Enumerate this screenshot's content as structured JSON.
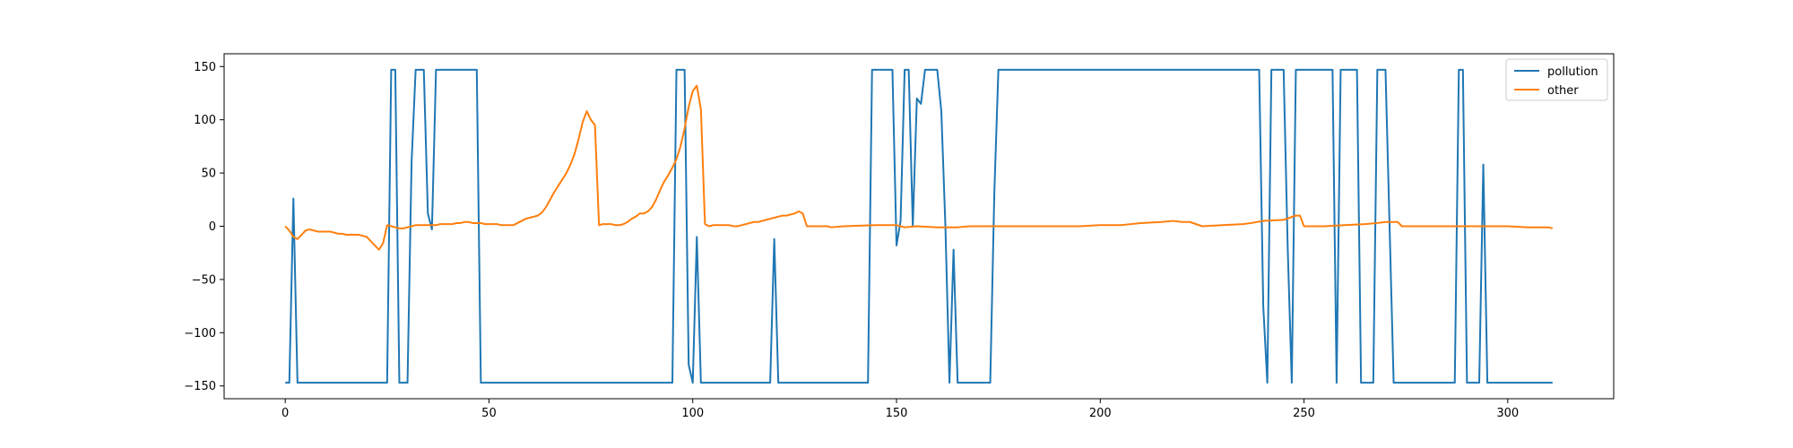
{
  "chart_data": {
    "type": "line",
    "grid": false,
    "legend_position": "top-right",
    "xlim": [
      -15,
      326
    ],
    "ylim": [
      -162,
      162
    ],
    "x_ticks": [
      0,
      50,
      100,
      150,
      200,
      250,
      300
    ],
    "y_ticks": [
      -150,
      -100,
      -50,
      0,
      50,
      100,
      150
    ],
    "series": [
      {
        "name": "pollution",
        "color": "#1f77b4",
        "points": [
          [
            0,
            -147
          ],
          [
            1,
            -147
          ],
          [
            2,
            26
          ],
          [
            3,
            -147
          ],
          [
            25,
            -147
          ],
          [
            26,
            147
          ],
          [
            27,
            147
          ],
          [
            28,
            -147
          ],
          [
            30,
            -147
          ],
          [
            31,
            60
          ],
          [
            32,
            147
          ],
          [
            34,
            147
          ],
          [
            35,
            12
          ],
          [
            36,
            -3
          ],
          [
            37,
            147
          ],
          [
            47,
            147
          ],
          [
            48,
            -147
          ],
          [
            95,
            -147
          ],
          [
            96,
            147
          ],
          [
            98,
            147
          ],
          [
            99,
            -130
          ],
          [
            100,
            -147
          ],
          [
            101,
            -10
          ],
          [
            102,
            -147
          ],
          [
            119,
            -147
          ],
          [
            120,
            -12
          ],
          [
            121,
            -147
          ],
          [
            143,
            -147
          ],
          [
            144,
            147
          ],
          [
            149,
            147
          ],
          [
            150,
            -18
          ],
          [
            151,
            5
          ],
          [
            152,
            147
          ],
          [
            153,
            147
          ],
          [
            154,
            0
          ],
          [
            155,
            120
          ],
          [
            156,
            115
          ],
          [
            157,
            147
          ],
          [
            160,
            147
          ],
          [
            161,
            108
          ],
          [
            162,
            0
          ],
          [
            163,
            -147
          ],
          [
            164,
            -22
          ],
          [
            165,
            -147
          ],
          [
            173,
            -147
          ],
          [
            174,
            30
          ],
          [
            175,
            147
          ],
          [
            239,
            147
          ],
          [
            240,
            -75
          ],
          [
            241,
            -147
          ],
          [
            242,
            147
          ],
          [
            245,
            147
          ],
          [
            246,
            -20
          ],
          [
            247,
            -147
          ],
          [
            248,
            147
          ],
          [
            257,
            147
          ],
          [
            258,
            -147
          ],
          [
            259,
            147
          ],
          [
            263,
            147
          ],
          [
            264,
            -147
          ],
          [
            267,
            -147
          ],
          [
            268,
            147
          ],
          [
            270,
            147
          ],
          [
            271,
            0
          ],
          [
            272,
            -147
          ],
          [
            287,
            -147
          ],
          [
            288,
            147
          ],
          [
            289,
            147
          ],
          [
            290,
            -147
          ],
          [
            293,
            -147
          ],
          [
            294,
            58
          ],
          [
            295,
            -147
          ],
          [
            311,
            -147
          ]
        ]
      },
      {
        "name": "other",
        "color": "#ff7f0e",
        "points": [
          [
            0,
            0
          ],
          [
            1,
            -4
          ],
          [
            2,
            -10
          ],
          [
            3,
            -12
          ],
          [
            4,
            -8
          ],
          [
            5,
            -4
          ],
          [
            6,
            -3
          ],
          [
            7,
            -4
          ],
          [
            8,
            -5
          ],
          [
            9,
            -5
          ],
          [
            10,
            -5
          ],
          [
            11,
            -5
          ],
          [
            12,
            -6
          ],
          [
            13,
            -7
          ],
          [
            14,
            -7
          ],
          [
            15,
            -8
          ],
          [
            16,
            -8
          ],
          [
            17,
            -8
          ],
          [
            18,
            -8
          ],
          [
            19,
            -9
          ],
          [
            20,
            -10
          ],
          [
            21,
            -14
          ],
          [
            22,
            -18
          ],
          [
            23,
            -22
          ],
          [
            24,
            -16
          ],
          [
            25,
            1
          ],
          [
            26,
            0
          ],
          [
            27,
            -1
          ],
          [
            28,
            -2
          ],
          [
            29,
            -2
          ],
          [
            30,
            -1
          ],
          [
            31,
            0
          ],
          [
            32,
            1
          ],
          [
            33,
            1
          ],
          [
            34,
            1
          ],
          [
            35,
            1
          ],
          [
            36,
            1
          ],
          [
            37,
            1
          ],
          [
            38,
            2
          ],
          [
            39,
            2
          ],
          [
            40,
            2
          ],
          [
            41,
            2
          ],
          [
            42,
            3
          ],
          [
            43,
            3
          ],
          [
            44,
            4
          ],
          [
            45,
            4
          ],
          [
            46,
            3
          ],
          [
            47,
            3
          ],
          [
            48,
            3
          ],
          [
            49,
            2
          ],
          [
            50,
            2
          ],
          [
            51,
            2
          ],
          [
            52,
            2
          ],
          [
            53,
            1
          ],
          [
            54,
            1
          ],
          [
            55,
            1
          ],
          [
            56,
            1
          ],
          [
            57,
            3
          ],
          [
            58,
            5
          ],
          [
            59,
            7
          ],
          [
            60,
            8
          ],
          [
            61,
            9
          ],
          [
            62,
            10
          ],
          [
            63,
            13
          ],
          [
            64,
            18
          ],
          [
            65,
            25
          ],
          [
            66,
            32
          ],
          [
            67,
            38
          ],
          [
            68,
            44
          ],
          [
            69,
            50
          ],
          [
            70,
            58
          ],
          [
            71,
            68
          ],
          [
            72,
            82
          ],
          [
            73,
            98
          ],
          [
            74,
            108
          ],
          [
            75,
            100
          ],
          [
            76,
            95
          ],
          [
            77,
            1
          ],
          [
            78,
            2
          ],
          [
            79,
            2
          ],
          [
            80,
            2
          ],
          [
            81,
            1
          ],
          [
            82,
            1
          ],
          [
            83,
            2
          ],
          [
            84,
            4
          ],
          [
            85,
            7
          ],
          [
            86,
            9
          ],
          [
            87,
            12
          ],
          [
            88,
            12
          ],
          [
            89,
            14
          ],
          [
            90,
            18
          ],
          [
            91,
            25
          ],
          [
            92,
            34
          ],
          [
            93,
            42
          ],
          [
            94,
            48
          ],
          [
            95,
            55
          ],
          [
            96,
            63
          ],
          [
            97,
            75
          ],
          [
            98,
            92
          ],
          [
            99,
            112
          ],
          [
            100,
            127
          ],
          [
            101,
            132
          ],
          [
            102,
            110
          ],
          [
            103,
            2
          ],
          [
            104,
            0
          ],
          [
            105,
            1
          ],
          [
            106,
            1
          ],
          [
            107,
            1
          ],
          [
            108,
            1
          ],
          [
            109,
            1
          ],
          [
            110,
            0
          ],
          [
            111,
            0
          ],
          [
            112,
            1
          ],
          [
            113,
            2
          ],
          [
            114,
            3
          ],
          [
            115,
            4
          ],
          [
            116,
            4
          ],
          [
            117,
            5
          ],
          [
            118,
            6
          ],
          [
            119,
            7
          ],
          [
            120,
            8
          ],
          [
            121,
            9
          ],
          [
            122,
            10
          ],
          [
            123,
            10
          ],
          [
            124,
            11
          ],
          [
            125,
            12
          ],
          [
            126,
            14
          ],
          [
            127,
            12
          ],
          [
            128,
            0
          ],
          [
            129,
            0
          ],
          [
            130,
            0
          ],
          [
            133,
            0
          ],
          [
            134,
            -1
          ],
          [
            137,
            0
          ],
          [
            145,
            1
          ],
          [
            150,
            1
          ],
          [
            152,
            -1
          ],
          [
            155,
            0
          ],
          [
            160,
            -1
          ],
          [
            165,
            -1
          ],
          [
            168,
            0
          ],
          [
            175,
            0
          ],
          [
            185,
            0
          ],
          [
            190,
            0
          ],
          [
            195,
            0
          ],
          [
            200,
            1
          ],
          [
            205,
            1
          ],
          [
            210,
            3
          ],
          [
            215,
            4
          ],
          [
            218,
            5
          ],
          [
            220,
            4
          ],
          [
            222,
            4
          ],
          [
            225,
            0
          ],
          [
            230,
            1
          ],
          [
            235,
            2
          ],
          [
            237,
            3
          ],
          [
            240,
            5
          ],
          [
            245,
            6
          ],
          [
            248,
            10
          ],
          [
            249,
            10
          ],
          [
            250,
            0
          ],
          [
            255,
            0
          ],
          [
            260,
            1
          ],
          [
            265,
            2
          ],
          [
            268,
            3
          ],
          [
            270,
            4
          ],
          [
            273,
            4
          ],
          [
            274,
            0
          ],
          [
            280,
            0
          ],
          [
            290,
            0
          ],
          [
            300,
            0
          ],
          [
            305,
            -1
          ],
          [
            310,
            -1
          ],
          [
            311,
            -2
          ]
        ]
      }
    ]
  }
}
